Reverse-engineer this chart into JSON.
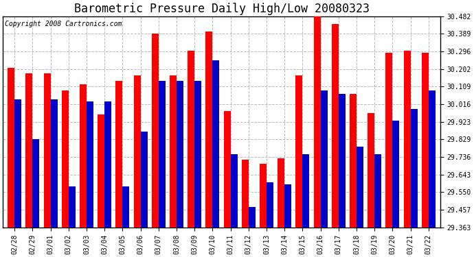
{
  "title": "Barometric Pressure Daily High/Low 20080323",
  "copyright": "Copyright 2008 Cartronics.com",
  "dates": [
    "02/28",
    "02/29",
    "03/01",
    "03/02",
    "03/03",
    "03/04",
    "03/05",
    "03/06",
    "03/07",
    "03/08",
    "03/09",
    "03/10",
    "03/11",
    "03/12",
    "03/13",
    "03/14",
    "03/15",
    "03/16",
    "03/17",
    "03/18",
    "03/19",
    "03/20",
    "03/21",
    "03/22"
  ],
  "highs": [
    30.21,
    30.18,
    30.18,
    30.09,
    30.12,
    29.96,
    30.14,
    30.17,
    30.39,
    30.17,
    30.3,
    30.4,
    29.98,
    29.72,
    29.7,
    29.73,
    30.17,
    30.5,
    30.44,
    30.07,
    29.97,
    30.29,
    30.3,
    30.29
  ],
  "lows": [
    30.04,
    29.83,
    30.04,
    29.58,
    30.03,
    30.03,
    29.58,
    29.87,
    30.14,
    30.14,
    30.14,
    30.25,
    29.75,
    29.47,
    29.6,
    29.59,
    29.75,
    30.09,
    30.07,
    29.79,
    29.75,
    29.93,
    29.99,
    30.09
  ],
  "high_color": "#ff0000",
  "low_color": "#0000cc",
  "bg_color": "#ffffff",
  "grid_color": "#bbbbbb",
  "ylim_min": 29.363,
  "ylim_max": 30.482,
  "yticks": [
    29.363,
    29.457,
    29.55,
    29.643,
    29.736,
    29.829,
    29.923,
    30.016,
    30.109,
    30.202,
    30.296,
    30.389,
    30.482
  ],
  "title_fontsize": 12,
  "tick_fontsize": 7,
  "copyright_fontsize": 7
}
